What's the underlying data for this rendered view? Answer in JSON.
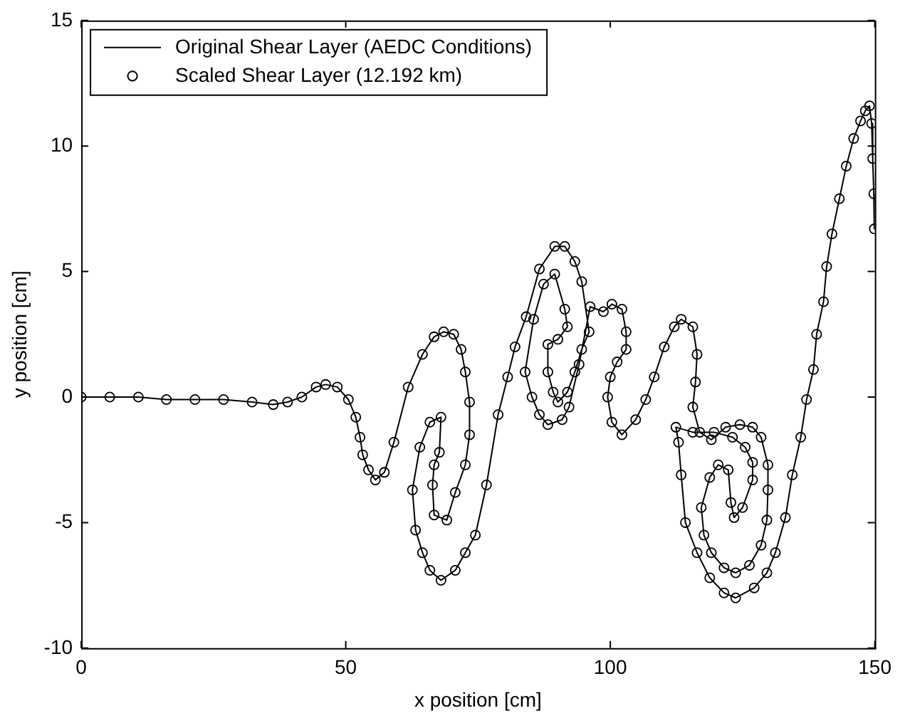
{
  "chart_data": {
    "type": "line",
    "xlabel": "x position [cm]",
    "ylabel": "y position [cm]",
    "x": [
      0,
      5.4,
      10.8,
      16.1,
      21.5,
      26.9,
      32.3,
      36.3,
      39.0,
      41.7,
      44.4,
      46.2,
      48.4,
      50.5,
      51.9,
      52.7,
      53.2,
      54.3,
      55.6,
      57.3,
      59.1,
      61.8,
      64.5,
      66.7,
      68.5,
      70.4,
      71.8,
      72.6,
      73.4,
      73.4,
      72.6,
      70.7,
      69.1,
      66.7,
      66.4,
      66.7,
      67.7,
      68.0,
      65.9,
      64.0,
      62.6,
      63.2,
      64.5,
      65.9,
      68.0,
      70.7,
      72.6,
      74.5,
      76.6,
      78.8,
      80.6,
      82.0,
      84.1,
      86.6,
      89.5,
      91.4,
      93.3,
      94.6,
      96.0,
      94.6,
      93.3,
      91.9,
      90.1,
      89.2,
      88.2,
      88.2,
      90.1,
      91.9,
      91.4,
      89.5,
      87.4,
      85.5,
      83.9,
      85.2,
      86.6,
      88.2,
      90.9,
      92.2,
      94.1,
      96.2,
      98.7,
      100.3,
      102.2,
      103.0,
      103.0,
      101.3,
      100.0,
      99.5,
      100.3,
      102.2,
      104.8,
      106.7,
      108.3,
      110.2,
      112.1,
      113.4,
      115.6,
      116.4,
      116.1,
      115.6,
      116.9,
      119.1,
      121.8,
      124.5,
      126.9,
      128.5,
      129.8,
      129.8,
      129.6,
      128.5,
      126.3,
      123.7,
      121.5,
      119.1,
      117.7,
      117.2,
      118.8,
      120.4,
      122.3,
      122.8,
      123.4,
      125.0,
      126.9,
      126.9,
      125.5,
      123.1,
      119.6,
      115.6,
      112.4,
      112.9,
      113.4,
      114.2,
      116.4,
      118.8,
      121.5,
      123.7,
      127.2,
      129.6,
      131.2,
      133.1,
      134.4,
      136.0,
      137.1,
      138.4,
      139.0,
      140.3,
      140.9,
      141.9,
      143.3,
      144.6,
      146.0,
      147.3,
      148.2,
      149.0,
      149.4,
      149.6,
      149.8,
      149.9
    ],
    "series": [
      {
        "name": "Original Shear Layer (AEDC Conditions)",
        "marker": "none",
        "color": "#000000",
        "values": [
          0,
          0,
          0,
          -0.1,
          -0.1,
          -0.1,
          -0.2,
          -0.3,
          -0.2,
          0.0,
          0.4,
          0.5,
          0.4,
          -0.1,
          -0.8,
          -1.6,
          -2.3,
          -2.9,
          -3.3,
          -3.0,
          -1.8,
          0.4,
          1.7,
          2.4,
          2.6,
          2.5,
          1.9,
          1.0,
          -0.2,
          -1.5,
          -2.7,
          -3.8,
          -4.9,
          -4.7,
          -3.5,
          -2.7,
          -2.2,
          -0.8,
          -1.0,
          -2.0,
          -3.7,
          -5.3,
          -6.2,
          -6.9,
          -7.3,
          -6.9,
          -6.2,
          -5.5,
          -3.5,
          -0.7,
          0.8,
          2.0,
          3.2,
          5.1,
          6.0,
          6.0,
          5.4,
          4.6,
          2.6,
          1.9,
          1.0,
          0.2,
          -0.2,
          0.2,
          1.0,
          2.1,
          2.3,
          2.8,
          3.5,
          4.9,
          4.5,
          3.1,
          1.0,
          0.0,
          -0.7,
          -1.1,
          -0.9,
          -0.4,
          1.3,
          3.6,
          3.4,
          3.7,
          3.5,
          2.6,
          1.9,
          1.4,
          0.8,
          0.0,
          -1.0,
          -1.5,
          -0.9,
          -0.1,
          0.8,
          2.0,
          2.8,
          3.1,
          2.8,
          1.7,
          0.6,
          -0.4,
          -1.4,
          -1.7,
          -1.2,
          -1.1,
          -1.2,
          -1.6,
          -2.7,
          -3.7,
          -4.9,
          -5.9,
          -6.7,
          -7.0,
          -6.8,
          -6.2,
          -5.5,
          -4.4,
          -3.2,
          -2.7,
          -2.9,
          -4.2,
          -4.8,
          -4.4,
          -3.3,
          -2.6,
          -2.0,
          -1.6,
          -1.4,
          -1.4,
          -1.2,
          -1.8,
          -3.1,
          -5.0,
          -6.2,
          -7.2,
          -7.8,
          -8.0,
          -7.6,
          -7.0,
          -6.2,
          -4.8,
          -3.1,
          -1.6,
          -0.1,
          1.1,
          2.5,
          3.8,
          5.2,
          6.5,
          7.9,
          9.2,
          10.3,
          11.0,
          11.4,
          11.6,
          10.9,
          9.5,
          8.1,
          6.7
        ]
      },
      {
        "name": "Scaled Shear Layer (12.192 km)",
        "type": "scatter",
        "marker": "circle",
        "color": "#000000",
        "values": [
          0,
          0,
          0,
          -0.1,
          -0.1,
          -0.1,
          -0.2,
          -0.3,
          -0.2,
          0.0,
          0.4,
          0.5,
          0.4,
          -0.1,
          -0.8,
          -1.6,
          -2.3,
          -2.9,
          -3.3,
          -3.0,
          -1.8,
          0.4,
          1.7,
          2.4,
          2.6,
          2.5,
          1.9,
          1.0,
          -0.2,
          -1.5,
          -2.7,
          -3.8,
          -4.9,
          -4.7,
          -3.5,
          -2.7,
          -2.2,
          -0.8,
          -1.0,
          -2.0,
          -3.7,
          -5.3,
          -6.2,
          -6.9,
          -7.3,
          -6.9,
          -6.2,
          -5.5,
          -3.5,
          -0.7,
          0.8,
          2.0,
          3.2,
          5.1,
          6.0,
          6.0,
          5.4,
          4.6,
          2.6,
          1.9,
          1.0,
          0.2,
          -0.2,
          0.2,
          1.0,
          2.1,
          2.3,
          2.8,
          3.5,
          4.9,
          4.5,
          3.1,
          1.0,
          0.0,
          -0.7,
          -1.1,
          -0.9,
          -0.4,
          1.3,
          3.6,
          3.4,
          3.7,
          3.5,
          2.6,
          1.9,
          1.4,
          0.8,
          0.0,
          -1.0,
          -1.5,
          -0.9,
          -0.1,
          0.8,
          2.0,
          2.8,
          3.1,
          2.8,
          1.7,
          0.6,
          -0.4,
          -1.4,
          -1.7,
          -1.2,
          -1.1,
          -1.2,
          -1.6,
          -2.7,
          -3.7,
          -4.9,
          -5.9,
          -6.7,
          -7.0,
          -6.8,
          -6.2,
          -5.5,
          -4.4,
          -3.2,
          -2.7,
          -2.9,
          -4.2,
          -4.8,
          -4.4,
          -3.3,
          -2.6,
          -2.0,
          -1.6,
          -1.4,
          -1.4,
          -1.2,
          -1.8,
          -3.1,
          -5.0,
          -6.2,
          -7.2,
          -7.8,
          -8.0,
          -7.6,
          -7.0,
          -6.2,
          -4.8,
          -3.1,
          -1.6,
          -0.1,
          1.1,
          2.5,
          3.8,
          5.2,
          6.5,
          7.9,
          9.2,
          10.3,
          11.0,
          11.4,
          11.6,
          10.9,
          9.5,
          8.1,
          6.7
        ]
      }
    ],
    "legend": "top left",
    "grid": false,
    "xlim": [
      0,
      150
    ],
    "xticks": [
      0,
      50,
      100,
      150
    ],
    "ylim": [
      -10,
      15
    ],
    "yticks": [
      -10,
      -5,
      0,
      5,
      10,
      15
    ]
  }
}
